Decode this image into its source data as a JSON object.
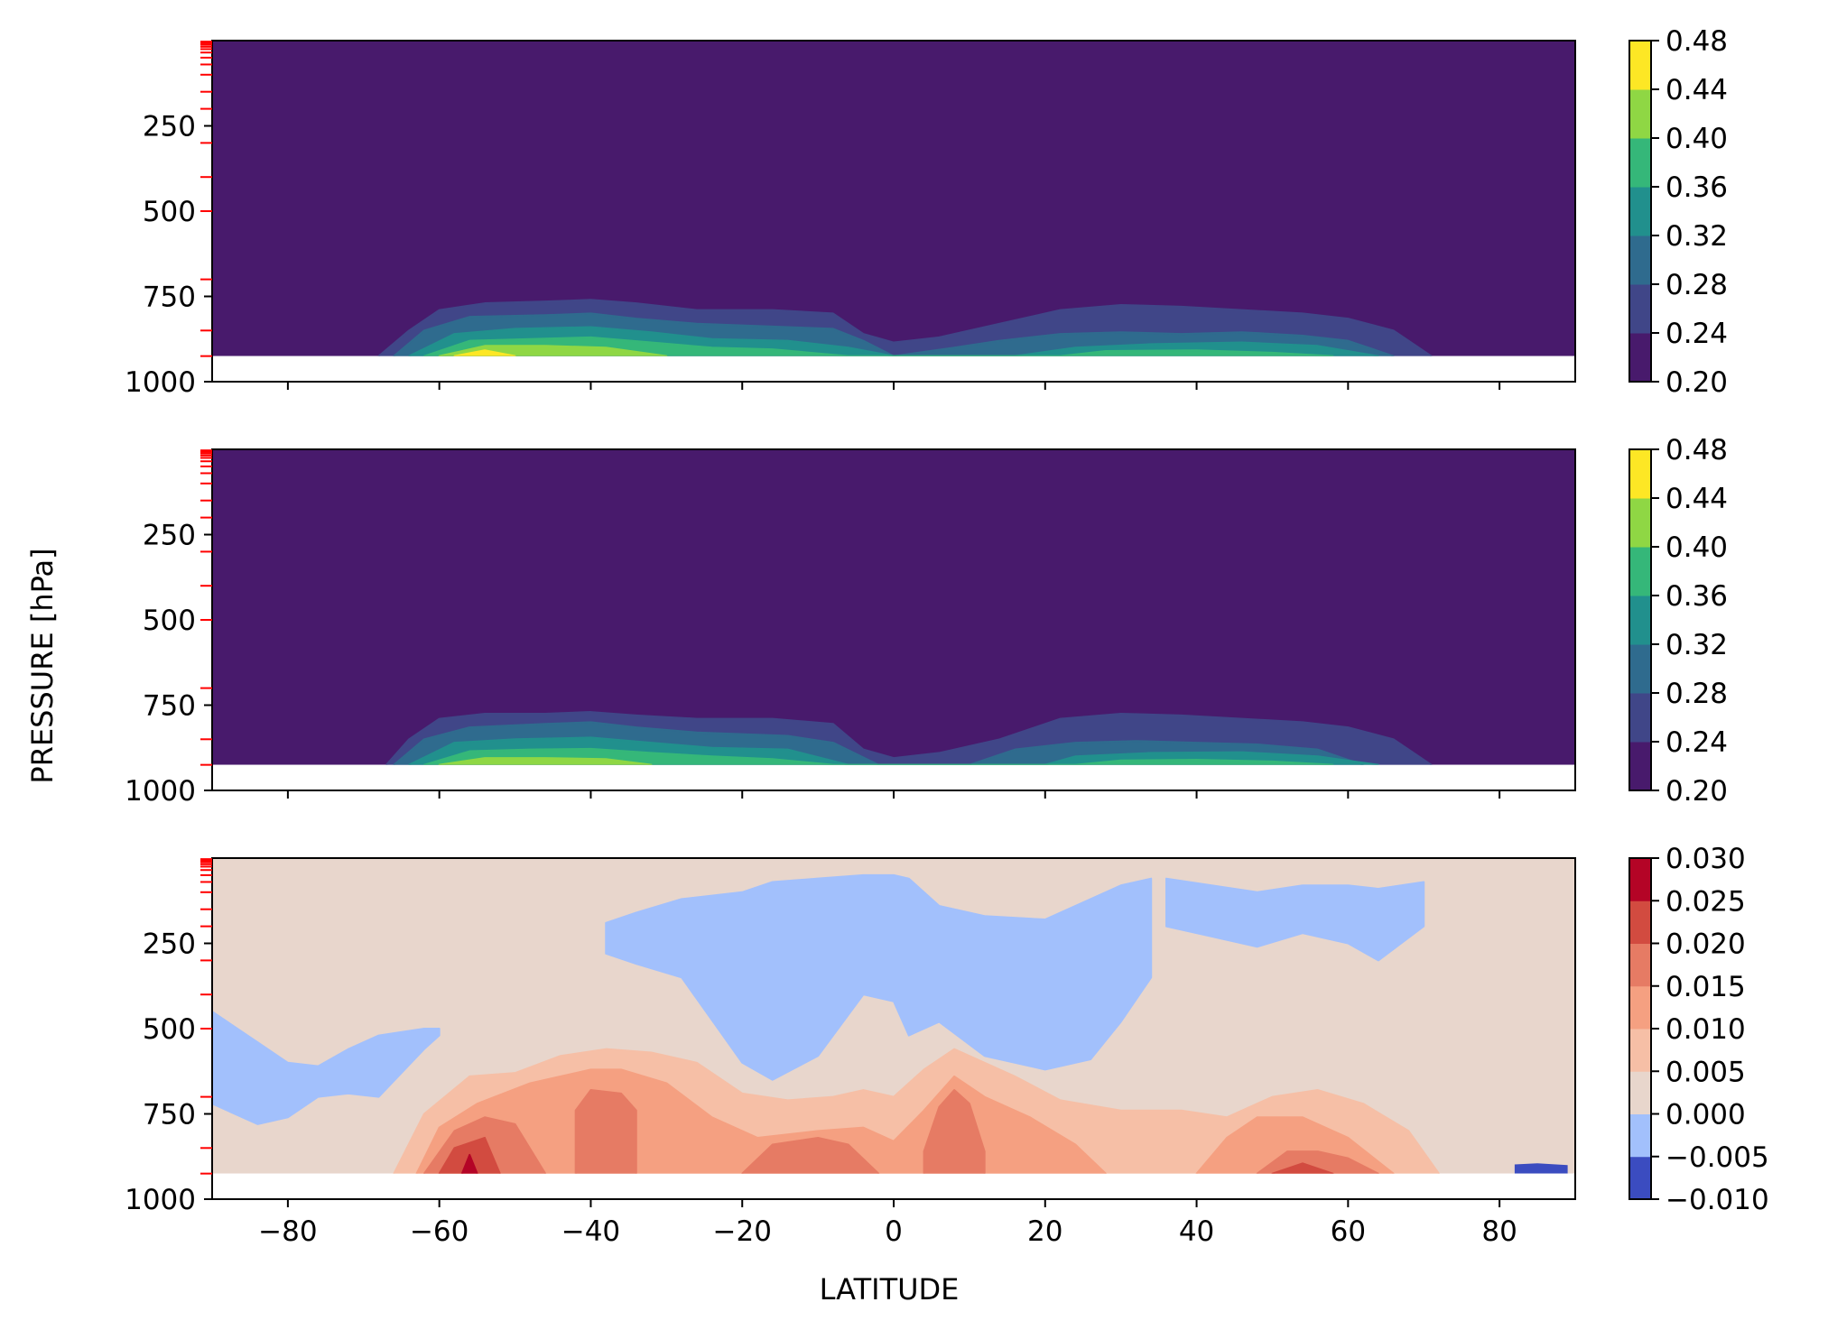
{
  "figure": {
    "ylabel": "PRESSURE [hPa]",
    "xlabel": "LATITUDE"
  },
  "chart_data": [
    {
      "type": "heatmap",
      "panel": "top",
      "xlim": [
        -90,
        90
      ],
      "ylim": [
        1000,
        0
      ],
      "yticks": [
        "250",
        "500",
        "750",
        "1000"
      ],
      "xticks_shown": false,
      "surface_pressure_cutoff": 925,
      "colorbar": {
        "levels": [
          0.2,
          0.24,
          0.28,
          0.32,
          0.36,
          0.4,
          0.44,
          0.48
        ],
        "labels": [
          "0.20",
          "0.24",
          "0.28",
          "0.32",
          "0.36",
          "0.40",
          "0.44",
          "0.48"
        ],
        "colors": [
          "#481a6c",
          "#404688",
          "#2f6b8e",
          "#21908d",
          "#35b779",
          "#8fd744",
          "#fde725"
        ]
      },
      "contours": [
        {
          "level": 0.24,
          "lat": [
            -68,
            -64,
            -60,
            -54,
            -46,
            -40,
            -34,
            -26,
            -16,
            -8,
            -4,
            0,
            6,
            14,
            22,
            30,
            38,
            46,
            54,
            60,
            66,
            71
          ],
          "p_top": [
            925,
            850,
            790,
            770,
            765,
            760,
            770,
            790,
            790,
            800,
            860,
            885,
            870,
            830,
            790,
            775,
            780,
            790,
            800,
            815,
            850,
            925
          ]
        },
        {
          "level": 0.28,
          "lat": [
            -66,
            -62,
            -56,
            -46,
            -40,
            -34,
            -26,
            -14,
            -8,
            -4,
            0,
            8,
            14,
            22,
            30,
            38,
            46,
            54,
            60,
            66
          ],
          "p_top": [
            925,
            850,
            810,
            805,
            800,
            815,
            830,
            840,
            845,
            880,
            925,
            900,
            880,
            860,
            855,
            860,
            855,
            865,
            880,
            925
          ]
        },
        {
          "level": 0.32,
          "lat": [
            -64,
            -58,
            -50,
            -40,
            -32,
            -24,
            -14,
            -6,
            0,
            16,
            24,
            34,
            46,
            56,
            64
          ],
          "p_top": [
            925,
            860,
            845,
            840,
            855,
            875,
            880,
            900,
            925,
            925,
            900,
            890,
            885,
            895,
            925
          ]
        },
        {
          "level": 0.36,
          "lat": [
            -62,
            -56,
            -48,
            -40,
            -32,
            -24,
            -16,
            -6,
            22,
            28,
            40,
            50,
            58
          ],
          "p_top": [
            925,
            880,
            875,
            870,
            885,
            900,
            905,
            925,
            925,
            910,
            908,
            915,
            925
          ]
        },
        {
          "level": 0.4,
          "lat": [
            -60,
            -54,
            -46,
            -38,
            -30
          ],
          "p_top": [
            925,
            895,
            895,
            900,
            925
          ]
        },
        {
          "level": 0.44,
          "lat": [
            -58,
            -54,
            -50
          ],
          "p_top": [
            925,
            908,
            925
          ]
        }
      ]
    },
    {
      "type": "heatmap",
      "panel": "middle",
      "xlim": [
        -90,
        90
      ],
      "ylim": [
        1000,
        0
      ],
      "yticks": [
        "250",
        "500",
        "750",
        "1000"
      ],
      "xticks_shown": false,
      "surface_pressure_cutoff": 925,
      "colorbar": {
        "levels": [
          0.2,
          0.24,
          0.28,
          0.32,
          0.36,
          0.4,
          0.44,
          0.48
        ],
        "labels": [
          "0.20",
          "0.24",
          "0.28",
          "0.32",
          "0.36",
          "0.40",
          "0.44",
          "0.48"
        ],
        "colors": [
          "#481a6c",
          "#404688",
          "#2f6b8e",
          "#21908d",
          "#35b779",
          "#8fd744",
          "#fde725"
        ]
      },
      "contours": [
        {
          "level": 0.24,
          "lat": [
            -67,
            -64,
            -60,
            -54,
            -46,
            -40,
            -34,
            -26,
            -16,
            -8,
            -4,
            0,
            6,
            14,
            22,
            30,
            38,
            46,
            54,
            60,
            66,
            71
          ],
          "p_top": [
            925,
            850,
            790,
            775,
            775,
            770,
            780,
            790,
            790,
            805,
            880,
            905,
            890,
            850,
            790,
            775,
            780,
            790,
            800,
            815,
            850,
            925
          ]
        },
        {
          "level": 0.28,
          "lat": [
            -66,
            -62,
            -56,
            -46,
            -40,
            -34,
            -26,
            -14,
            -8,
            -2,
            10,
            16,
            24,
            32,
            40,
            48,
            56,
            62
          ],
          "p_top": [
            925,
            850,
            815,
            805,
            800,
            815,
            830,
            840,
            860,
            925,
            925,
            880,
            860,
            855,
            860,
            865,
            880,
            925
          ]
        },
        {
          "level": 0.32,
          "lat": [
            -64,
            -58,
            -50,
            -40,
            -32,
            -24,
            -14,
            -6,
            20,
            24,
            34,
            46,
            56,
            64
          ],
          "p_top": [
            925,
            860,
            850,
            845,
            860,
            875,
            880,
            925,
            925,
            900,
            890,
            888,
            900,
            925
          ]
        },
        {
          "level": 0.36,
          "lat": [
            -62,
            -56,
            -48,
            -40,
            -32,
            -24,
            -16,
            -8,
            24,
            30,
            40,
            50,
            58
          ],
          "p_top": [
            925,
            885,
            880,
            878,
            890,
            900,
            908,
            925,
            925,
            912,
            910,
            915,
            925
          ]
        },
        {
          "level": 0.4,
          "lat": [
            -60,
            -54,
            -46,
            -38,
            -32
          ],
          "p_top": [
            925,
            905,
            905,
            908,
            925
          ]
        }
      ]
    },
    {
      "type": "heatmap",
      "panel": "bottom",
      "xlim": [
        -90,
        90
      ],
      "ylim": [
        1000,
        0
      ],
      "yticks": [
        "250",
        "500",
        "750",
        "1000"
      ],
      "xticks": [
        "−80",
        "−60",
        "−40",
        "−20",
        "0",
        "20",
        "40",
        "60",
        "80"
      ],
      "xtick_values": [
        -80,
        -60,
        -40,
        -20,
        0,
        20,
        40,
        60,
        80
      ],
      "surface_pressure_cutoff": 925,
      "colorbar": {
        "levels": [
          -0.01,
          -0.005,
          0.0,
          0.005,
          0.01,
          0.015,
          0.02,
          0.025,
          0.03
        ],
        "labels": [
          "−0.010",
          "−0.005",
          "0.000",
          "0.005",
          "0.010",
          "0.015",
          "0.020",
          "0.025",
          "0.030"
        ],
        "colors": [
          "#3b4cc0",
          "#a2c0fc",
          "#e8d6cc",
          "#f6bfa6",
          "#f5a081",
          "#e67b64",
          "#d24b40",
          "#b40426"
        ]
      },
      "contours": [
        {
          "level": -0.005,
          "lat": [
            -90,
            -84,
            -80,
            -76,
            -72,
            -68,
            -62,
            -60
          ],
          "p_top": [
            450,
            540,
            600,
            610,
            560,
            520,
            500,
            500
          ],
          "p_bottom": [
            720,
            780,
            760,
            700,
            690,
            700,
            560,
            520
          ]
        },
        {
          "level": -0.005,
          "lat": [
            -38,
            -34,
            -28,
            -20,
            -16,
            -10,
            -4,
            0,
            2,
            6,
            12,
            20,
            26,
            30,
            34
          ],
          "p_top": [
            190,
            160,
            120,
            100,
            70,
            60,
            50,
            50,
            60,
            140,
            170,
            180,
            120,
            80,
            60
          ],
          "p_bottom": [
            280,
            310,
            350,
            600,
            650,
            580,
            400,
            420,
            520,
            480,
            580,
            620,
            590,
            480,
            350
          ]
        },
        {
          "level": -0.005,
          "lat": [
            36,
            42,
            48,
            54,
            60,
            64,
            70
          ],
          "p_top": [
            60,
            80,
            100,
            80,
            80,
            90,
            70
          ],
          "p_bottom": [
            200,
            230,
            260,
            220,
            250,
            300,
            200
          ]
        },
        {
          "level": 0.005,
          "lat": [
            -66,
            -62,
            -56,
            -50,
            -44,
            -38,
            -32,
            -26,
            -20,
            -14,
            -8,
            -4,
            0,
            4,
            8,
            12,
            16,
            22,
            30,
            38,
            44,
            50,
            56,
            62,
            68,
            72
          ],
          "p_top": [
            925,
            750,
            640,
            630,
            580,
            560,
            570,
            600,
            690,
            710,
            700,
            680,
            700,
            620,
            560,
            600,
            640,
            710,
            740,
            740,
            760,
            700,
            680,
            720,
            800,
            925
          ]
        },
        {
          "level": 0.01,
          "lat": [
            -63,
            -60,
            -55,
            -48,
            -40,
            -36,
            -30,
            -24,
            -18,
            -10,
            -4,
            0,
            4,
            8,
            12,
            18,
            24,
            28
          ],
          "p_top": [
            925,
            790,
            720,
            660,
            620,
            620,
            660,
            760,
            820,
            800,
            790,
            830,
            740,
            640,
            700,
            760,
            840,
            925
          ]
        },
        {
          "level": 0.01,
          "lat": [
            40,
            44,
            48,
            54,
            60,
            66
          ],
          "p_top": [
            925,
            820,
            760,
            760,
            820,
            925
          ]
        },
        {
          "level": 0.015,
          "lat": [
            -62,
            -58,
            -54,
            -50,
            -46
          ],
          "p_top": [
            925,
            800,
            760,
            780,
            925
          ]
        },
        {
          "level": 0.015,
          "lat": [
            -20,
            -16,
            -10,
            -6,
            -2
          ],
          "p_top": [
            925,
            840,
            820,
            840,
            925
          ]
        },
        {
          "level": 0.015,
          "lat": [
            4,
            6,
            8,
            10,
            12
          ],
          "p_top": [
            860,
            730,
            680,
            720,
            860
          ]
        },
        {
          "level": 0.015,
          "lat": [
            48,
            52,
            56,
            60,
            64
          ],
          "p_top": [
            925,
            860,
            860,
            880,
            925
          ]
        },
        {
          "level": 0.015,
          "lat": [
            -42,
            -40,
            -36,
            -34
          ],
          "p_top": [
            740,
            680,
            690,
            740
          ]
        },
        {
          "level": 0.02,
          "lat": [
            -60,
            -58,
            -54,
            -52
          ],
          "p_top": [
            925,
            850,
            820,
            925
          ]
        },
        {
          "level": 0.02,
          "lat": [
            50,
            54,
            58
          ],
          "p_top": [
            925,
            895,
            925
          ]
        },
        {
          "level": 0.025,
          "lat": [
            -57,
            -56,
            -55
          ],
          "p_top": [
            925,
            870,
            925
          ]
        }
      ],
      "annotations": [
        {
          "level": -0.01,
          "lat": [
            82,
            85,
            89
          ],
          "p": [
            898,
            895,
            900
          ]
        }
      ]
    }
  ]
}
